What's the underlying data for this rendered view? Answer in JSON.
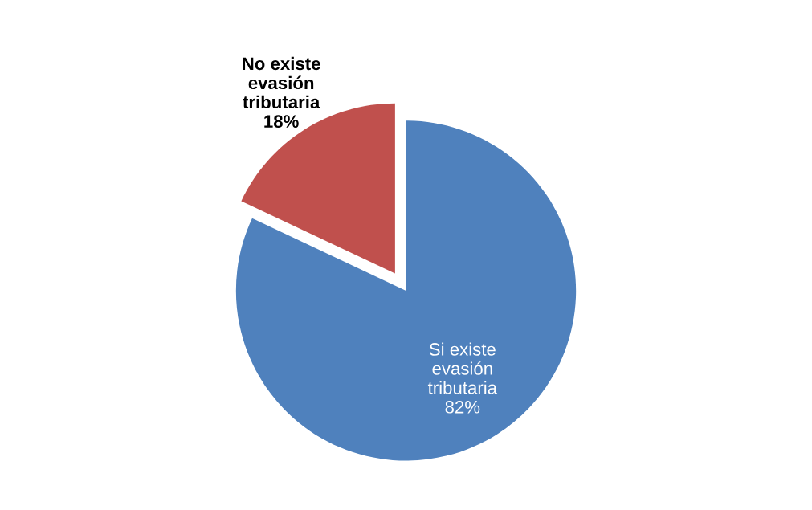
{
  "chart_data": {
    "type": "pie",
    "categories": [
      "Si existe\nevasión\ntributaria",
      "No existe\nevasión\ntributaria"
    ],
    "values": [
      82,
      18
    ],
    "colors": [
      "#4f81bd",
      "#c0504d"
    ],
    "value_labels": [
      "82%",
      "18%"
    ]
  }
}
